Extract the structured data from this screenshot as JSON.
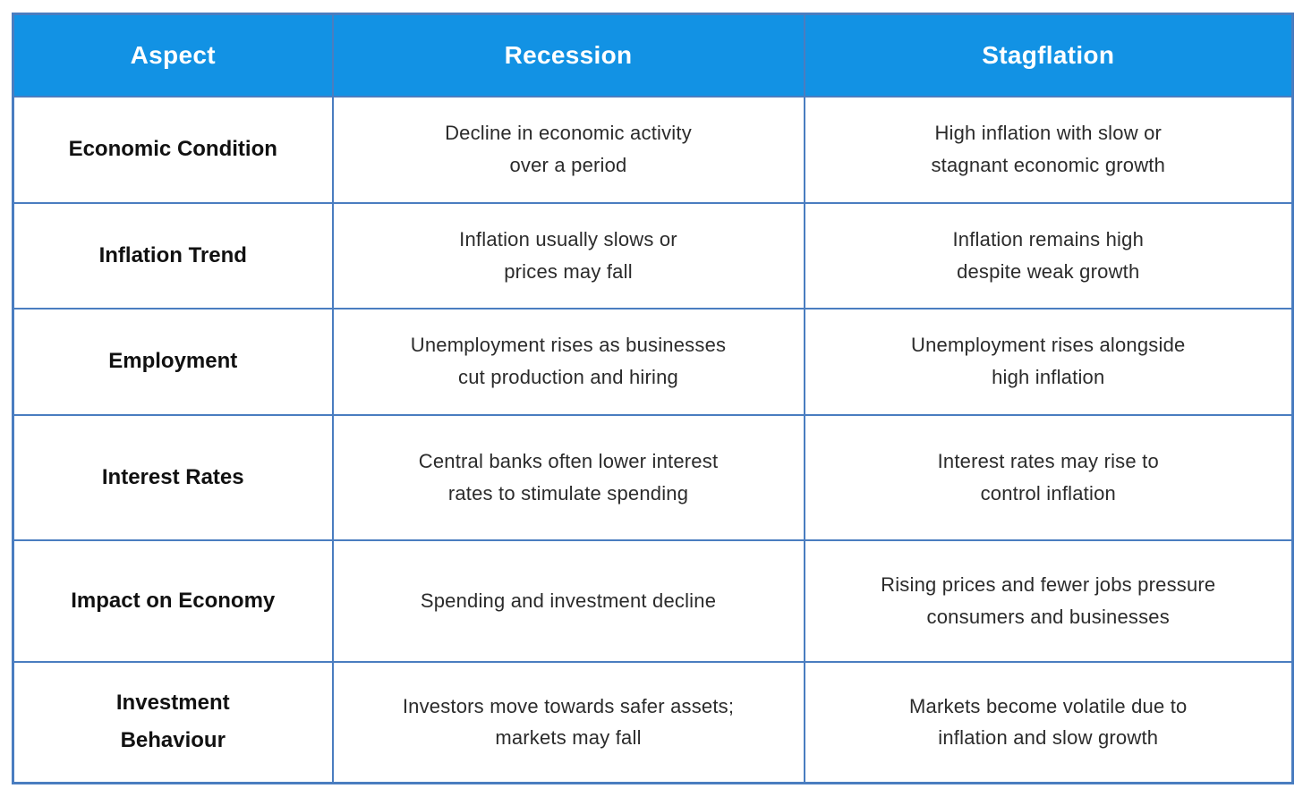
{
  "chart_data": {
    "type": "table",
    "columns": [
      "Aspect",
      "Recession",
      "Stagflation"
    ],
    "rows": [
      {
        "aspect": "Economic Condition",
        "recession": "Decline in economic activity\nover a period",
        "stagflation": "High inflation with slow or\nstagnant economic growth"
      },
      {
        "aspect": "Inflation Trend",
        "recession": "Inflation usually slows or\nprices may fall",
        "stagflation": "Inflation remains high\ndespite weak growth"
      },
      {
        "aspect": "Employment",
        "recession": "Unemployment rises as businesses\ncut production and hiring",
        "stagflation": "Unemployment rises alongside\nhigh inflation"
      },
      {
        "aspect": "Interest Rates",
        "recession": "Central banks often lower interest\nrates to stimulate spending",
        "stagflation": "Interest rates may rise to\ncontrol inflation"
      },
      {
        "aspect": "Impact on Economy",
        "recession": "Spending and investment decline",
        "stagflation": "Rising prices and fewer jobs pressure\nconsumers and businesses"
      },
      {
        "aspect": "Investment\nBehaviour",
        "recession": "Investors move towards safer assets;\nmarkets may fall",
        "stagflation": "Markets become volatile due to\ninflation and slow growth"
      }
    ]
  },
  "colors": {
    "header_bg": "#1292E4",
    "header_text": "#FFFFFF",
    "grid": "#4A7DC0",
    "aspect_text": "#111111",
    "body_text": "#2B2B2B",
    "page_bg": "#FFFFFF"
  }
}
